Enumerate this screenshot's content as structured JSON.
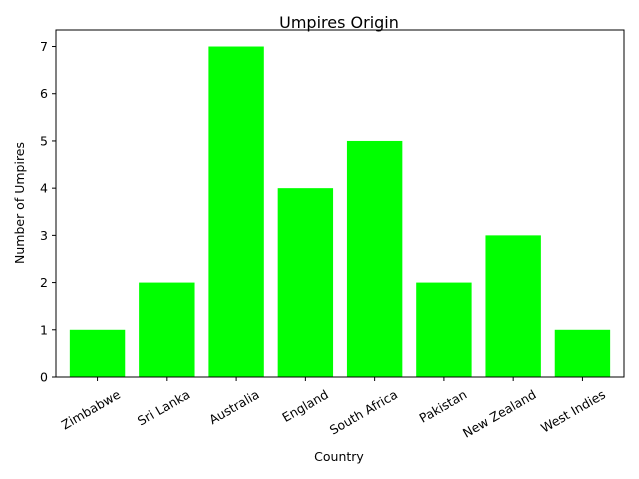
{
  "chart_data": {
    "type": "bar",
    "title": "Umpires Origin",
    "xlabel": "Country",
    "ylabel": "Number of Umpires",
    "categories": [
      "Zimbabwe",
      "Sri Lanka",
      "Australia",
      "England",
      "South Africa",
      "Pakistan",
      "New Zealand",
      "West Indies"
    ],
    "values": [
      1,
      2,
      7,
      4,
      5,
      2,
      3,
      1
    ],
    "ylim": [
      0,
      7.35
    ],
    "yticks": [
      0,
      1,
      2,
      3,
      4,
      5,
      6,
      7
    ],
    "bar_color": "#00ff00",
    "grid": false,
    "legend": "none"
  }
}
